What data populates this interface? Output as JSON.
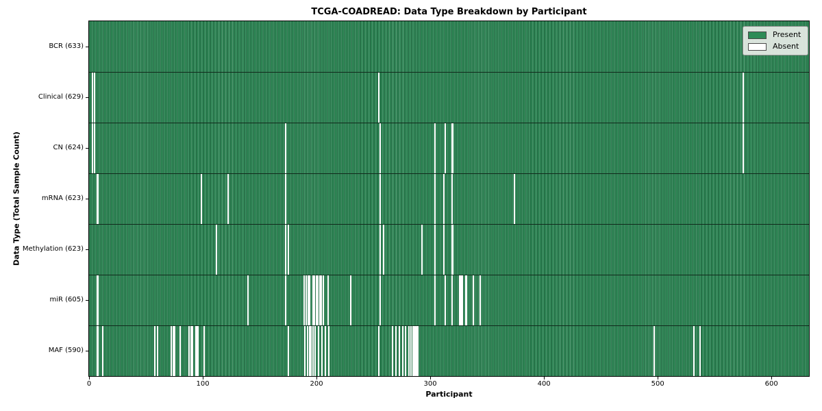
{
  "figure": {
    "title": "TCGA-COADREAD: Data Type Breakdown by Participant",
    "xlabel": "Participant",
    "ylabel": "Data Type (Total Sample Count)"
  },
  "legend": {
    "items": [
      {
        "label": "Present",
        "color": "#2e8b57"
      },
      {
        "label": "Absent",
        "color": "#ffffff"
      }
    ]
  },
  "chart_data": {
    "type": "heatmap",
    "title": "TCGA-COADREAD: Data Type Breakdown by Participant",
    "xlabel": "Participant",
    "ylabel": "Data Type (Total Sample Count)",
    "legend_entries": [
      "Present",
      "Absent"
    ],
    "legend_position": "upper right",
    "grid": false,
    "colors": {
      "present": "#2e8b57",
      "absent": "#ffffff",
      "row_separator": "#10291b"
    },
    "x_ticks": [
      0,
      100,
      200,
      300,
      400,
      500,
      600
    ],
    "x_range": [
      0,
      633
    ],
    "n_participants": 633,
    "rows": [
      {
        "data_type": "BCR",
        "label": "BCR (633)",
        "total": 633,
        "absent_participants": []
      },
      {
        "data_type": "Clinical",
        "label": "Clinical (629)",
        "total": 629,
        "absent_participants": [
          3,
          5,
          255,
          575
        ]
      },
      {
        "data_type": "CN",
        "label": "CN (624)",
        "total": 624,
        "absent_participants": [
          3,
          5,
          173,
          256,
          304,
          313,
          319,
          320,
          575
        ]
      },
      {
        "data_type": "mRNA",
        "label": "mRNA (623)",
        "total": 623,
        "absent_participants": [
          7,
          8,
          99,
          122,
          173,
          256,
          304,
          312,
          319,
          374
        ]
      },
      {
        "data_type": "Methylation",
        "label": "Methylation (623)",
        "total": 623,
        "absent_participants": [
          112,
          173,
          175,
          256,
          259,
          293,
          304,
          312,
          319,
          320
        ]
      },
      {
        "data_type": "miR",
        "label": "miR (605)",
        "total": 605,
        "absent_participants": [
          7,
          8,
          140,
          173,
          189,
          191,
          193,
          194,
          197,
          198,
          200,
          201,
          203,
          204,
          206,
          210,
          230,
          256,
          304,
          313,
          319,
          326,
          327,
          328,
          331,
          332,
          338,
          344
        ]
      },
      {
        "data_type": "MAF",
        "label": "MAF (590)",
        "total": 590,
        "absent_participants": [
          7,
          8,
          12,
          58,
          60,
          72,
          74,
          75,
          80,
          88,
          90,
          91,
          94,
          95,
          96,
          101,
          175,
          190,
          192,
          194,
          195,
          197,
          199,
          202,
          205,
          208,
          211,
          255,
          267,
          270,
          273,
          276,
          278,
          281,
          283,
          285,
          286,
          287,
          288,
          289,
          497,
          532,
          537
        ]
      }
    ]
  }
}
